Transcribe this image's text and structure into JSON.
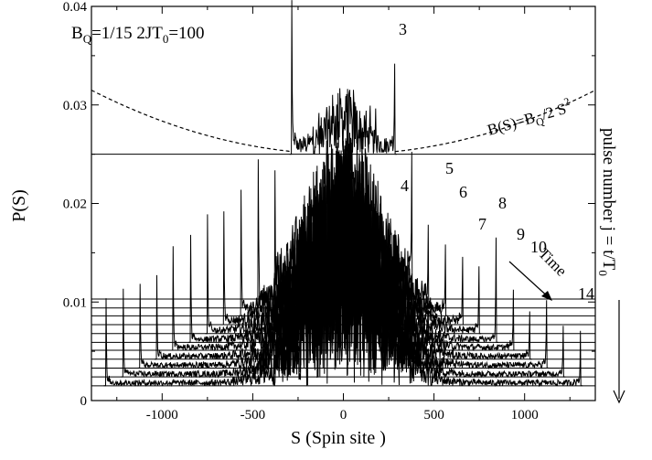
{
  "chart_data": {
    "type": "line",
    "xlabel": "S  (Spin site )",
    "ylabel": "P(S)",
    "xlim": [
      -1390,
      1390
    ],
    "ylim": [
      0,
      0.04
    ],
    "x_ticks": [
      -1000,
      -500,
      0,
      500,
      1000
    ],
    "y_ticks": [
      0,
      0.01,
      0.02,
      0.03,
      0.04
    ],
    "x_tick_labels": [
      "-1000",
      "-500",
      "0",
      "500",
      "1000"
    ],
    "y_tick_labels": [
      "0",
      "0.01",
      "0.02",
      "0.03",
      "0.04"
    ],
    "parameters_label": {
      "bq_main": "B",
      "bq_sub": "Q",
      "bq_rest": "=1/15  2JT",
      "t_sub": "0",
      "t_rest": "=100"
    },
    "field_label": {
      "main": "B(S)=B",
      "sub": "Q",
      "rest": "/2 S",
      "sup": "2"
    },
    "right_axis_label": {
      "main": "pulse number j = t/T",
      "sub": "0"
    },
    "time_label": "Time",
    "baseline_top_panel": 0.025,
    "field_curve": {
      "type": "parabola",
      "vertex_y": 0.025,
      "y_at_plus_minus_1390": 0.0315
    },
    "pulses": [
      {
        "j": 3,
        "front": 285,
        "peak": 0.0398,
        "baseline": 0.025,
        "label": "3"
      },
      {
        "j": 4,
        "front": 378,
        "peak": 0.0218,
        "baseline": 0.0103,
        "label": "4"
      },
      {
        "j": 5,
        "front": 470,
        "peak": 0.0233,
        "baseline": 0.0094,
        "label": "5"
      },
      {
        "j": 6,
        "front": 565,
        "peak": 0.0212,
        "baseline": 0.0086,
        "label": "6"
      },
      {
        "j": 7,
        "front": 660,
        "peak": 0.0187,
        "baseline": 0.0077,
        "label": "7"
      },
      {
        "j": 8,
        "front": 750,
        "peak": 0.0186,
        "baseline": 0.0068,
        "label": "8"
      },
      {
        "j": 9,
        "front": 843,
        "peak": 0.0165,
        "baseline": 0.0059,
        "label": "9"
      },
      {
        "j": 10,
        "front": 940,
        "peak": 0.0153,
        "baseline": 0.0051,
        "label": "10"
      },
      {
        "j": 11,
        "front": 1030,
        "peak": 0.0126,
        "baseline": 0.0042,
        "label": ""
      },
      {
        "j": 12,
        "front": 1122,
        "peak": 0.0115,
        "baseline": 0.0033,
        "label": ""
      },
      {
        "j": 13,
        "front": 1215,
        "peak": 0.011,
        "baseline": 0.0024,
        "label": ""
      },
      {
        "j": 14,
        "front": 1310,
        "peak": 0.0102,
        "baseline": 0.0015,
        "label": "14"
      }
    ]
  }
}
